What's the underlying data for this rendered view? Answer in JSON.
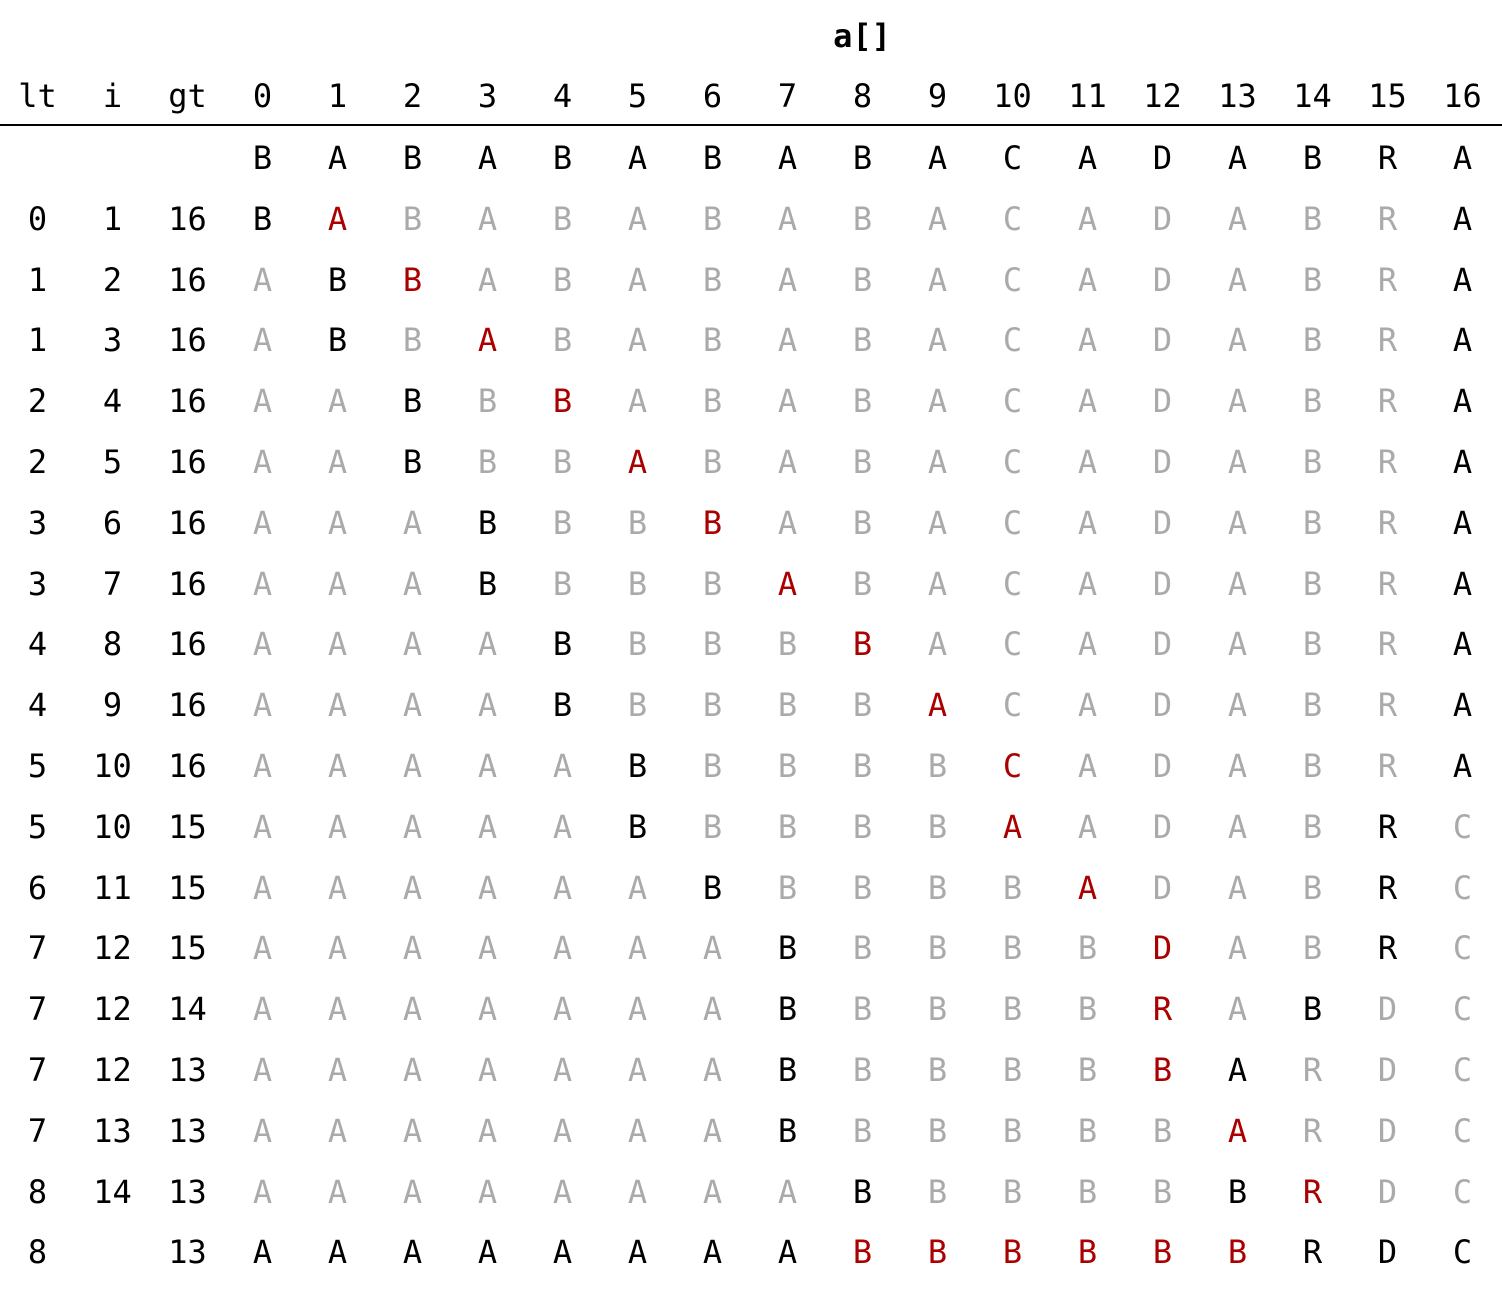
{
  "title": "a[]",
  "colors": {
    "active": "#000000",
    "inactive": "#aaaaaa",
    "highlight": "#aa0000"
  },
  "headers": [
    "lt",
    "i",
    "gt",
    "0",
    "1",
    "2",
    "3",
    "4",
    "5",
    "6",
    "7",
    "8",
    "9",
    "10",
    "11",
    "12",
    "13",
    "14",
    "15",
    "16"
  ],
  "initial_row": {
    "lt": "",
    "i": "",
    "gt": "",
    "cells": [
      "B",
      "A",
      "B",
      "A",
      "B",
      "A",
      "B",
      "A",
      "B",
      "A",
      "C",
      "A",
      "D",
      "A",
      "B",
      "R",
      "A"
    ]
  },
  "rows": [
    {
      "lt": "0",
      "i": "1",
      "gt": "16",
      "cells": [
        "B",
        "A",
        "B",
        "A",
        "B",
        "A",
        "B",
        "A",
        "B",
        "A",
        "C",
        "A",
        "D",
        "A",
        "B",
        "R",
        "A"
      ],
      "marks": "kraaaaaaaaaaaaaak"
    },
    {
      "lt": "1",
      "i": "2",
      "gt": "16",
      "cells": [
        "A",
        "B",
        "B",
        "A",
        "B",
        "A",
        "B",
        "A",
        "B",
        "A",
        "C",
        "A",
        "D",
        "A",
        "B",
        "R",
        "A"
      ],
      "marks": "akraaaaaaaaaaaaak"
    },
    {
      "lt": "1",
      "i": "3",
      "gt": "16",
      "cells": [
        "A",
        "B",
        "B",
        "A",
        "B",
        "A",
        "B",
        "A",
        "B",
        "A",
        "C",
        "A",
        "D",
        "A",
        "B",
        "R",
        "A"
      ],
      "marks": "akaraaaaaaaaaaaak"
    },
    {
      "lt": "2",
      "i": "4",
      "gt": "16",
      "cells": [
        "A",
        "A",
        "B",
        "B",
        "B",
        "A",
        "B",
        "A",
        "B",
        "A",
        "C",
        "A",
        "D",
        "A",
        "B",
        "R",
        "A"
      ],
      "marks": "aakaraaaaaaaaaaak"
    },
    {
      "lt": "2",
      "i": "5",
      "gt": "16",
      "cells": [
        "A",
        "A",
        "B",
        "B",
        "B",
        "A",
        "B",
        "A",
        "B",
        "A",
        "C",
        "A",
        "D",
        "A",
        "B",
        "R",
        "A"
      ],
      "marks": "aakaaraaaaaaaaaak"
    },
    {
      "lt": "3",
      "i": "6",
      "gt": "16",
      "cells": [
        "A",
        "A",
        "A",
        "B",
        "B",
        "B",
        "B",
        "A",
        "B",
        "A",
        "C",
        "A",
        "D",
        "A",
        "B",
        "R",
        "A"
      ],
      "marks": "aaakaaraaaaaaaaak"
    },
    {
      "lt": "3",
      "i": "7",
      "gt": "16",
      "cells": [
        "A",
        "A",
        "A",
        "B",
        "B",
        "B",
        "B",
        "A",
        "B",
        "A",
        "C",
        "A",
        "D",
        "A",
        "B",
        "R",
        "A"
      ],
      "marks": "aaakaaaraaaaaaaak"
    },
    {
      "lt": "4",
      "i": "8",
      "gt": "16",
      "cells": [
        "A",
        "A",
        "A",
        "A",
        "B",
        "B",
        "B",
        "B",
        "B",
        "A",
        "C",
        "A",
        "D",
        "A",
        "B",
        "R",
        "A"
      ],
      "marks": "aaaakaaaraaaaaaak"
    },
    {
      "lt": "4",
      "i": "9",
      "gt": "16",
      "cells": [
        "A",
        "A",
        "A",
        "A",
        "B",
        "B",
        "B",
        "B",
        "B",
        "A",
        "C",
        "A",
        "D",
        "A",
        "B",
        "R",
        "A"
      ],
      "marks": "aaaakaaaaraaaaaak"
    },
    {
      "lt": "5",
      "i": "10",
      "gt": "16",
      "cells": [
        "A",
        "A",
        "A",
        "A",
        "A",
        "B",
        "B",
        "B",
        "B",
        "B",
        "C",
        "A",
        "D",
        "A",
        "B",
        "R",
        "A"
      ],
      "marks": "aaaaakaaaaraaaaak"
    },
    {
      "lt": "5",
      "i": "10",
      "gt": "15",
      "cells": [
        "A",
        "A",
        "A",
        "A",
        "A",
        "B",
        "B",
        "B",
        "B",
        "B",
        "A",
        "A",
        "D",
        "A",
        "B",
        "R",
        "C"
      ],
      "marks": "aaaaakaaaaraaaaka"
    },
    {
      "lt": "6",
      "i": "11",
      "gt": "15",
      "cells": [
        "A",
        "A",
        "A",
        "A",
        "A",
        "A",
        "B",
        "B",
        "B",
        "B",
        "B",
        "A",
        "D",
        "A",
        "B",
        "R",
        "C"
      ],
      "marks": "aaaaaakaaaaraaaka"
    },
    {
      "lt": "7",
      "i": "12",
      "gt": "15",
      "cells": [
        "A",
        "A",
        "A",
        "A",
        "A",
        "A",
        "A",
        "B",
        "B",
        "B",
        "B",
        "B",
        "D",
        "A",
        "B",
        "R",
        "C"
      ],
      "marks": "aaaaaaakaaaaraaka"
    },
    {
      "lt": "7",
      "i": "12",
      "gt": "14",
      "cells": [
        "A",
        "A",
        "A",
        "A",
        "A",
        "A",
        "A",
        "B",
        "B",
        "B",
        "B",
        "B",
        "R",
        "A",
        "B",
        "D",
        "C"
      ],
      "marks": "aaaaaaakaaaarakaa"
    },
    {
      "lt": "7",
      "i": "12",
      "gt": "13",
      "cells": [
        "A",
        "A",
        "A",
        "A",
        "A",
        "A",
        "A",
        "B",
        "B",
        "B",
        "B",
        "B",
        "B",
        "A",
        "R",
        "D",
        "C"
      ],
      "marks": "aaaaaaakaaaarkaaa"
    },
    {
      "lt": "7",
      "i": "13",
      "gt": "13",
      "cells": [
        "A",
        "A",
        "A",
        "A",
        "A",
        "A",
        "A",
        "B",
        "B",
        "B",
        "B",
        "B",
        "B",
        "A",
        "R",
        "D",
        "C"
      ],
      "marks": "aaaaaaakaaaaaraaa"
    },
    {
      "lt": "8",
      "i": "14",
      "gt": "13",
      "cells": [
        "A",
        "A",
        "A",
        "A",
        "A",
        "A",
        "A",
        "A",
        "B",
        "B",
        "B",
        "B",
        "B",
        "B",
        "R",
        "D",
        "C"
      ],
      "marks": "aaaaaaaakaaaakraa"
    },
    {
      "lt": "8",
      "i": "",
      "gt": "13",
      "cells": [
        "A",
        "A",
        "A",
        "A",
        "A",
        "A",
        "A",
        "A",
        "B",
        "B",
        "B",
        "B",
        "B",
        "B",
        "R",
        "D",
        "C"
      ],
      "marks": "kkkkkkkkrrrrrrkkk"
    }
  ]
}
